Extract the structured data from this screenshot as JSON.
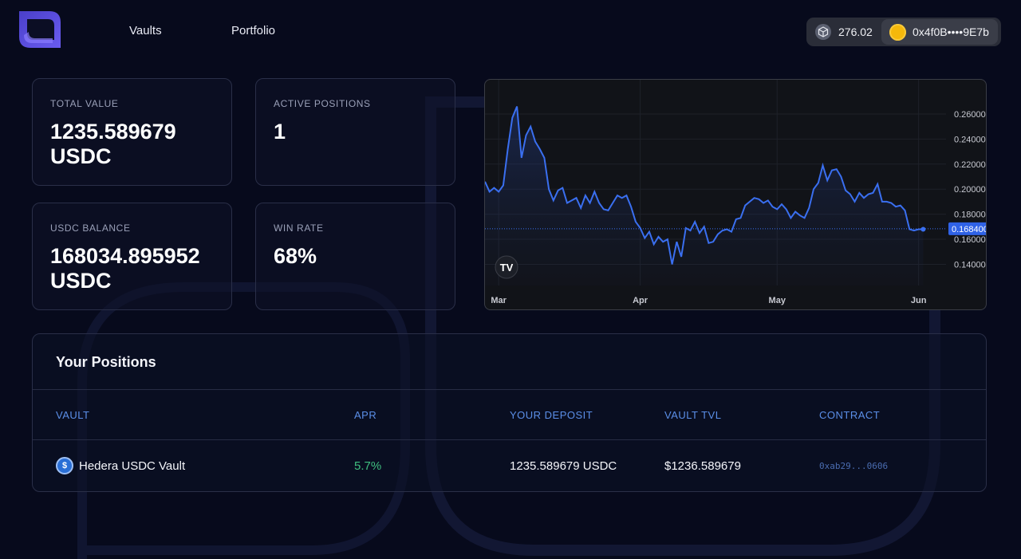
{
  "nav": {
    "vaults": "Vaults",
    "portfolio": "Portfolio"
  },
  "wallet": {
    "balance": "276.02",
    "address": "0x4f0B••••9E7b",
    "balance_icon": "cube-icon",
    "address_icon": "coin-icon"
  },
  "stats": {
    "total_value": {
      "label": "TOTAL VALUE",
      "value_line1": "1235.589679",
      "value_line2": "USDC"
    },
    "active_positions": {
      "label": "ACTIVE POSITIONS",
      "value": "1"
    },
    "usdc_balance": {
      "label": "USDC BALANCE",
      "value_line1": "168034.895952",
      "value_line2": "USDC"
    },
    "win_rate": {
      "label": "WIN RATE",
      "value": "68%"
    }
  },
  "chart_data": {
    "type": "area",
    "x_ticks": [
      "Mar",
      "Apr",
      "May",
      "Jun"
    ],
    "y_ticks": [
      "0.260000",
      "0.240000",
      "0.220000",
      "0.200000",
      "0.180000",
      "0.160000",
      "0.140000"
    ],
    "current_value_label": "0.168400",
    "current_value": 0.1684,
    "ylim": [
      0.128,
      0.27
    ],
    "grid": true,
    "line_color": "#3a6ff0",
    "x_range_days": [
      -3,
      98
    ],
    "series": [
      {
        "days": [
          -3,
          -2,
          -1,
          0,
          1,
          2,
          3,
          4,
          5,
          6,
          7,
          8,
          9,
          10,
          11,
          12,
          13,
          14,
          15,
          16,
          17,
          18,
          19,
          20,
          21,
          22,
          23,
          24,
          25,
          26,
          27,
          28,
          29,
          30,
          31,
          32,
          33,
          34,
          35,
          36,
          37,
          38,
          39,
          40,
          41,
          42,
          43,
          44,
          45,
          46,
          47,
          48,
          49,
          50,
          51,
          52,
          53,
          54,
          55,
          56,
          57,
          58,
          59,
          60,
          61,
          62,
          63,
          64,
          65,
          66,
          67,
          68,
          69,
          70,
          71,
          72,
          73,
          74,
          75,
          76,
          77,
          78,
          79,
          80,
          81,
          82,
          83,
          84,
          85,
          86,
          87,
          88,
          89,
          90,
          91,
          92,
          93
        ],
        "values": [
          0.206,
          0.198,
          0.201,
          0.198,
          0.203,
          0.232,
          0.257,
          0.266,
          0.225,
          0.243,
          0.25,
          0.238,
          0.232,
          0.225,
          0.2,
          0.191,
          0.199,
          0.201,
          0.189,
          0.191,
          0.193,
          0.185,
          0.195,
          0.189,
          0.198,
          0.189,
          0.184,
          0.183,
          0.189,
          0.195,
          0.193,
          0.195,
          0.186,
          0.174,
          0.169,
          0.161,
          0.166,
          0.156,
          0.162,
          0.158,
          0.16,
          0.14,
          0.158,
          0.146,
          0.169,
          0.167,
          0.174,
          0.165,
          0.17,
          0.157,
          0.158,
          0.164,
          0.167,
          0.168,
          0.166,
          0.176,
          0.177,
          0.187,
          0.19,
          0.193,
          0.192,
          0.189,
          0.191,
          0.186,
          0.184,
          0.188,
          0.184,
          0.177,
          0.182,
          0.179,
          0.177,
          0.185,
          0.2,
          0.205,
          0.219,
          0.207,
          0.215,
          0.216,
          0.21,
          0.199,
          0.196,
          0.19,
          0.197,
          0.193,
          0.196,
          0.197,
          0.204,
          0.19,
          0.19,
          0.189,
          0.186,
          0.187,
          0.183,
          0.168,
          0.167,
          0.168,
          0.168
        ]
      }
    ]
  },
  "positions": {
    "title": "Your Positions",
    "columns": [
      "VAULT",
      "APR",
      "YOUR DEPOSIT",
      "VAULT TVL",
      "CONTRACT"
    ],
    "rows": [
      {
        "vault": "Hedera USDC Vault",
        "apr": "5.7%",
        "deposit": "1235.589679 USDC",
        "tvl": "$1236.589679",
        "contract": "0xab29...0606",
        "icon": "usdc-icon"
      }
    ]
  },
  "colors": {
    "background": "#070a1c",
    "accent": "#5b8fe8",
    "positive": "#3fbf7f",
    "chart_line": "#3a6ff0"
  }
}
